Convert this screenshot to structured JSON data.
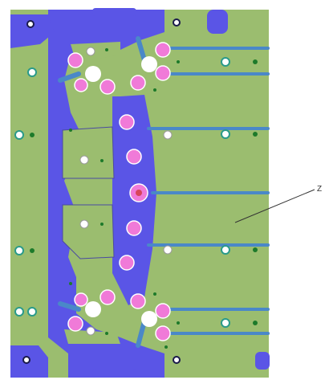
{
  "callout": {
    "label": "Z"
  },
  "colors": {
    "background": "#ffffff",
    "substrate": "#9bbd6f",
    "copper_plane": "#5a55e6",
    "trace": "#4a88c8",
    "pad_pink": "#f07ad8",
    "via_white": "#ffffff",
    "via_teal": "#2a9a8a",
    "via_green": "#1d7a2a",
    "outline": "#4a4aa0"
  }
}
